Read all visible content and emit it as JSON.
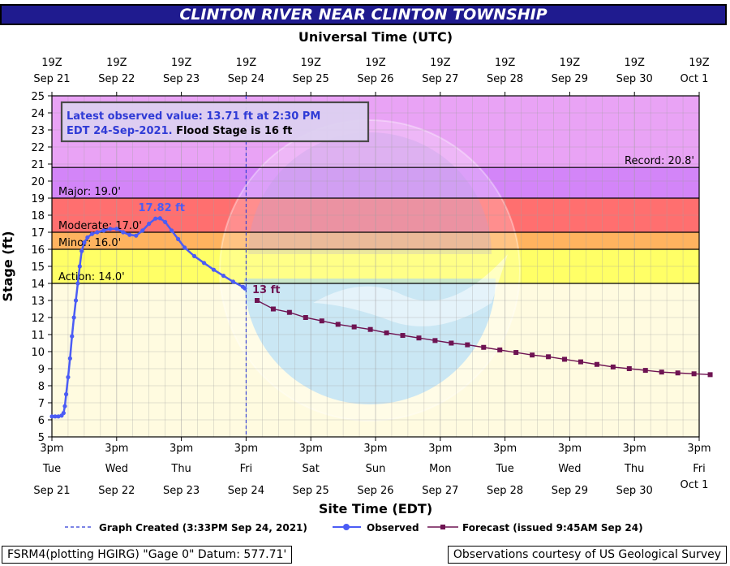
{
  "header": {
    "title": "CLINTON RIVER NEAR CLINTON TOWNSHIP",
    "top_axis_title": "Universal Time (UTC)"
  },
  "info_box": {
    "line1": "Latest observed value: 13.71 ft at 2:30 PM",
    "line2_prefix": "EDT 24-Sep-2021.",
    "line2_suffix": " Flood Stage is 16 ft"
  },
  "legend": {
    "created": "Graph Created (3:33PM Sep 24, 2021)",
    "observed": "Observed",
    "forecast": "Forecast (issued 9:45AM Sep 24)"
  },
  "footer": {
    "left": "FSRM4(plotting HGIRG) \"Gage 0\" Datum: 577.71'",
    "right": "Observations courtesy of US Geological Survey"
  },
  "colors": {
    "title_bar": "#1f1b8f",
    "record_band": "#e9a3f5",
    "major_band": "#d385f8",
    "moderate_band": "#ff6f6f",
    "minor_band": "#ffb35f",
    "action_band": "#ffff66",
    "observed": "#4b5cf5",
    "forecast": "#6e1352"
  },
  "chart_data": {
    "type": "line",
    "title": "CLINTON RIVER NEAR CLINTON TOWNSHIP",
    "ylabel": "Stage (ft)",
    "xlabel": "Site Time (EDT)",
    "x2label": "Universal Time (UTC)",
    "ylim": [
      5,
      25
    ],
    "y_ticks": [
      5,
      6,
      7,
      8,
      9,
      10,
      11,
      12,
      13,
      14,
      15,
      16,
      17,
      18,
      19,
      20,
      21,
      22,
      23,
      24,
      25
    ],
    "bottom_ticks": [
      {
        "line1": "3pm",
        "line2": "Tue",
        "line3": "Sep 21"
      },
      {
        "line1": "3pm",
        "line2": "Wed",
        "line3": "Sep 22"
      },
      {
        "line1": "3pm",
        "line2": "Thu",
        "line3": "Sep 23"
      },
      {
        "line1": "3pm",
        "line2": "Fri",
        "line3": "Sep 24"
      },
      {
        "line1": "3pm",
        "line2": "Sat",
        "line3": "Sep 25"
      },
      {
        "line1": "3pm",
        "line2": "Sun",
        "line3": "Sep 26"
      },
      {
        "line1": "3pm",
        "line2": "Mon",
        "line3": "Sep 27"
      },
      {
        "line1": "3pm",
        "line2": "Tue",
        "line3": "Sep 28"
      },
      {
        "line1": "3pm",
        "line2": "Wed",
        "line3": "Sep 29"
      },
      {
        "line1": "3pm",
        "line2": "Thu",
        "line3": "Sep 30"
      },
      {
        "line1": "3pm",
        "line2": "Fri",
        "line3": "Oct 1"
      }
    ],
    "top_ticks": [
      {
        "line1": "19Z",
        "line2": "Sep 21"
      },
      {
        "line1": "19Z",
        "line2": "Sep 22"
      },
      {
        "line1": "19Z",
        "line2": "Sep 23"
      },
      {
        "line1": "19Z",
        "line2": "Sep 24"
      },
      {
        "line1": "19Z",
        "line2": "Sep 25"
      },
      {
        "line1": "19Z",
        "line2": "Sep 26"
      },
      {
        "line1": "19Z",
        "line2": "Sep 27"
      },
      {
        "line1": "19Z",
        "line2": "Sep 28"
      },
      {
        "line1": "19Z",
        "line2": "Sep 29"
      },
      {
        "line1": "19Z",
        "line2": "Sep 30"
      },
      {
        "line1": "19Z",
        "line2": "Oct 1"
      }
    ],
    "grid": true,
    "thresholds": [
      {
        "name": "Record",
        "label": "Record: 20.8'",
        "value": 20.8
      },
      {
        "name": "Major",
        "label": "Major: 19.0'",
        "value": 19.0
      },
      {
        "name": "Moderate",
        "label": "Moderate: 17.0'",
        "value": 17.0
      },
      {
        "name": "Minor",
        "label": "Minor: 16.0'",
        "value": 16.0
      },
      {
        "name": "Action",
        "label": "Action: 14.0'",
        "value": 14.0
      }
    ],
    "graph_created_x": 3.0,
    "observed": {
      "name": "Observed",
      "peak_label": "17.82 ft",
      "points": [
        [
          0.0,
          6.2
        ],
        [
          0.05,
          6.2
        ],
        [
          0.1,
          6.2
        ],
        [
          0.15,
          6.25
        ],
        [
          0.18,
          6.4
        ],
        [
          0.2,
          6.8
        ],
        [
          0.22,
          7.5
        ],
        [
          0.25,
          8.5
        ],
        [
          0.28,
          9.6
        ],
        [
          0.31,
          10.9
        ],
        [
          0.34,
          12.0
        ],
        [
          0.37,
          13.0
        ],
        [
          0.4,
          14.0
        ],
        [
          0.43,
          15.0
        ],
        [
          0.46,
          15.9
        ],
        [
          0.5,
          16.4
        ],
        [
          0.55,
          16.7
        ],
        [
          0.62,
          16.9
        ],
        [
          0.7,
          17.0
        ],
        [
          0.8,
          17.1
        ],
        [
          0.9,
          17.2
        ],
        [
          1.0,
          17.2
        ],
        [
          1.1,
          17.0
        ],
        [
          1.2,
          16.85
        ],
        [
          1.3,
          16.8
        ],
        [
          1.4,
          17.1
        ],
        [
          1.5,
          17.5
        ],
        [
          1.6,
          17.8
        ],
        [
          1.67,
          17.82
        ],
        [
          1.75,
          17.6
        ],
        [
          1.85,
          17.1
        ],
        [
          1.95,
          16.6
        ],
        [
          2.05,
          16.1
        ],
        [
          2.2,
          15.6
        ],
        [
          2.35,
          15.2
        ],
        [
          2.5,
          14.8
        ],
        [
          2.65,
          14.45
        ],
        [
          2.8,
          14.1
        ],
        [
          2.95,
          13.8
        ],
        [
          2.98,
          13.71
        ]
      ]
    },
    "forecast": {
      "name": "Forecast",
      "start_label": "13 ft",
      "points": [
        [
          3.17,
          13.0
        ],
        [
          3.42,
          12.5
        ],
        [
          3.67,
          12.3
        ],
        [
          3.92,
          12.0
        ],
        [
          4.17,
          11.8
        ],
        [
          4.42,
          11.6
        ],
        [
          4.67,
          11.45
        ],
        [
          4.92,
          11.3
        ],
        [
          5.17,
          11.1
        ],
        [
          5.42,
          10.95
        ],
        [
          5.67,
          10.8
        ],
        [
          5.92,
          10.65
        ],
        [
          6.17,
          10.5
        ],
        [
          6.42,
          10.4
        ],
        [
          6.67,
          10.25
        ],
        [
          6.92,
          10.1
        ],
        [
          7.17,
          9.95
        ],
        [
          7.42,
          9.8
        ],
        [
          7.67,
          9.7
        ],
        [
          7.92,
          9.55
        ],
        [
          8.17,
          9.4
        ],
        [
          8.42,
          9.25
        ],
        [
          8.67,
          9.1
        ],
        [
          8.92,
          9.0
        ],
        [
          9.17,
          8.9
        ],
        [
          9.42,
          8.8
        ],
        [
          9.67,
          8.75
        ],
        [
          9.92,
          8.7
        ],
        [
          10.17,
          8.65
        ]
      ]
    }
  }
}
